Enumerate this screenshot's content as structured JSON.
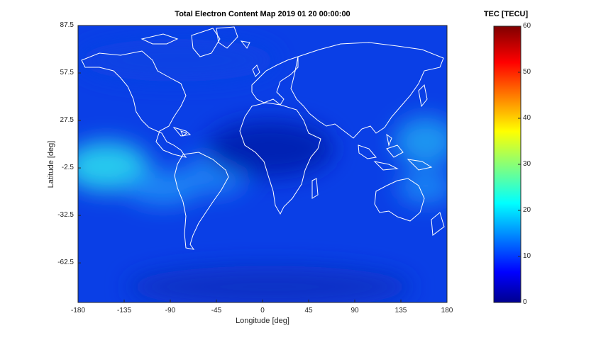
{
  "chart_data": {
    "type": "heatmap",
    "title": "Total Electron Content Map 2019 01 20 00:00:00",
    "xlabel": "Longitude [deg]",
    "ylabel": "Latitude [deg]",
    "xlim": [
      -180,
      180
    ],
    "ylim": [
      -87.5,
      87.5
    ],
    "x_ticks": [
      -180,
      -135,
      -90,
      -45,
      0,
      45,
      90,
      135,
      180
    ],
    "y_ticks": [
      87.5,
      57.5,
      27.5,
      -2.5,
      -32.5,
      -62.5
    ],
    "colorbar": {
      "label": "TEC [TECU]",
      "range": [
        0,
        60
      ],
      "ticks": [
        0,
        10,
        20,
        30,
        40,
        50,
        60
      ],
      "colormap": "jet"
    },
    "overlay": "white coastlines",
    "tec_features": [
      {
        "description": "background",
        "lon": 0,
        "lat": 0,
        "tec": 6
      },
      {
        "lon": -155,
        "lat": -5,
        "tec": 20
      },
      {
        "lon": -115,
        "lat": -15,
        "tec": 15
      },
      {
        "lon": -60,
        "lat": -5,
        "tec": 14
      },
      {
        "lon": 150,
        "lat": 15,
        "tec": 16
      },
      {
        "lon": 170,
        "lat": -15,
        "tec": 15
      },
      {
        "lon": 0,
        "lat": 20,
        "tec": 3
      },
      {
        "lon": 0,
        "lat": -75,
        "tec": 4
      }
    ]
  }
}
